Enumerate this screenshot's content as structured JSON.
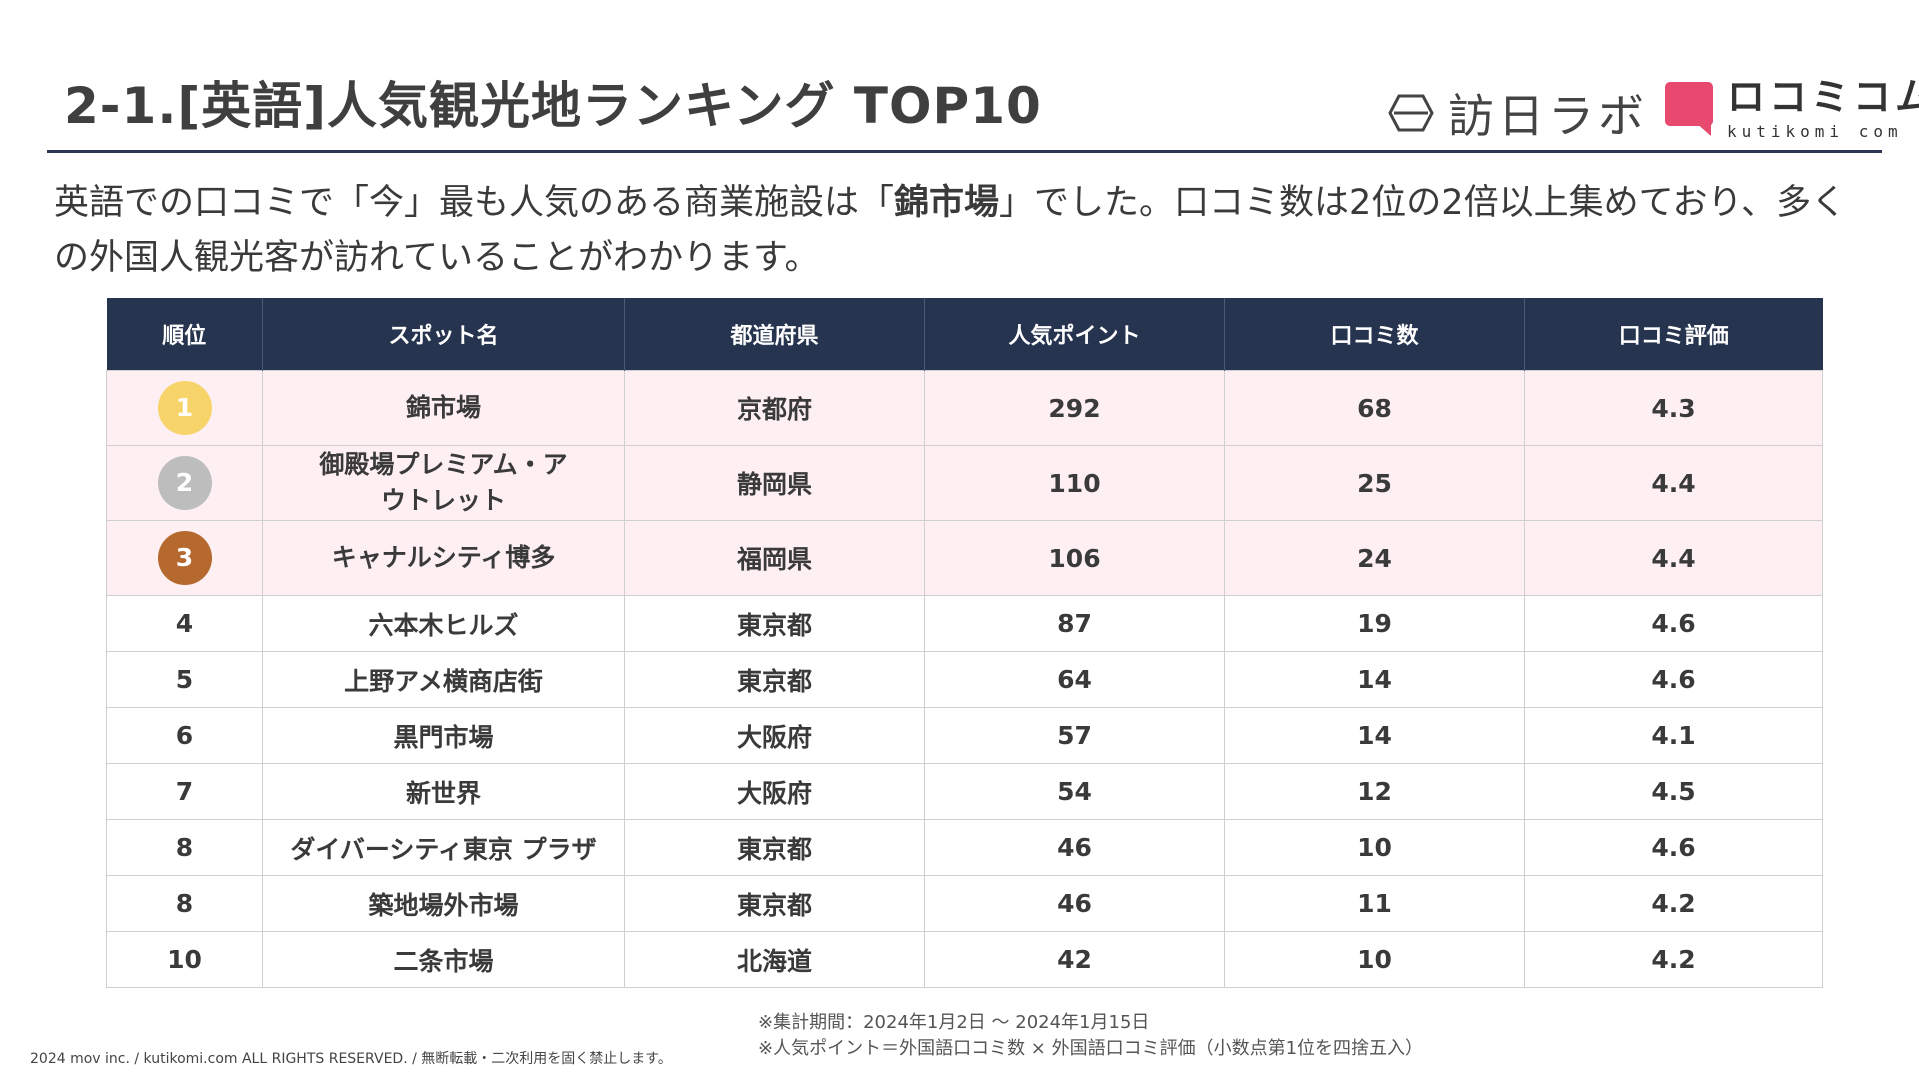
{
  "header": {
    "title": "2-1.[英語]人気観光地ランキング TOP10",
    "logo_houjin": "訪日ラボ",
    "logo_kuti_main": "ロコミコム",
    "logo_kuti_sub": "kutikomi com",
    "colors": {
      "navy": "#27344f",
      "pink": "#e8496e"
    }
  },
  "lead": {
    "part1": "英語での口コミで「今」最も人気のある商業施設は「",
    "highlight": "錦市場",
    "part2": "」でした。口コミ数は2位の2倍以上集めており、多くの外国人観光客が訪れていることがわかります。"
  },
  "table": {
    "headers": [
      "順位",
      "スポット名",
      "都道府県",
      "人気ポイント",
      "口コミ数",
      "口コミ評価"
    ],
    "rows": [
      {
        "rank": "1",
        "spot": "錦市場",
        "pref": "京都府",
        "points": "292",
        "reviews": "68",
        "rating": "4.3",
        "badge_color": "#f7d46a"
      },
      {
        "rank": "2",
        "spot": "御殿場プレミアム・アウトレット",
        "pref": "静岡県",
        "points": "110",
        "reviews": "25",
        "rating": "4.4",
        "badge_color": "#bdbdbd"
      },
      {
        "rank": "3",
        "spot": "キャナルシティ博多",
        "pref": "福岡県",
        "points": "106",
        "reviews": "24",
        "rating": "4.4",
        "badge_color": "#b5692f"
      },
      {
        "rank": "4",
        "spot": "六本木ヒルズ",
        "pref": "東京都",
        "points": "87",
        "reviews": "19",
        "rating": "4.6"
      },
      {
        "rank": "5",
        "spot": "上野アメ横商店街",
        "pref": "東京都",
        "points": "64",
        "reviews": "14",
        "rating": "4.6"
      },
      {
        "rank": "6",
        "spot": "黒門市場",
        "pref": "大阪府",
        "points": "57",
        "reviews": "14",
        "rating": "4.1"
      },
      {
        "rank": "7",
        "spot": "新世界",
        "pref": "大阪府",
        "points": "54",
        "reviews": "12",
        "rating": "4.5"
      },
      {
        "rank": "8",
        "spot": "ダイバーシティ東京 プラザ",
        "pref": "東京都",
        "points": "46",
        "reviews": "10",
        "rating": "4.6"
      },
      {
        "rank": "8",
        "spot": "築地場外市場",
        "pref": "東京都",
        "points": "46",
        "reviews": "11",
        "rating": "4.2"
      },
      {
        "rank": "10",
        "spot": "二条市場",
        "pref": "北海道",
        "points": "42",
        "reviews": "10",
        "rating": "4.2"
      }
    ]
  },
  "footer": {
    "copyright": "2024 mov inc. / kutikomi.com ALL RIGHTS RESERVED. / 無断転載・二次利用を固く禁止します。",
    "note1": "※集計期間：2024年1月2日 〜 2024年1月15日",
    "note2": "※人気ポイント＝外国語口コミ数 × 外国語口コミ評価（小数点第1位を四捨五入）"
  }
}
